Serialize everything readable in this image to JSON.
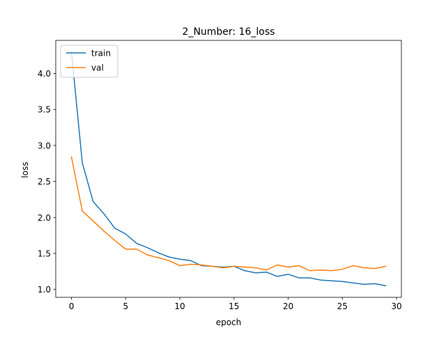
{
  "chart_data": {
    "type": "line",
    "title": "2_Number: 16_loss",
    "xlabel": "epoch",
    "ylabel": "loss",
    "xlim": [
      -1.45,
      30.45
    ],
    "ylim": [
      0.89,
      4.46
    ],
    "xticks": [
      0,
      5,
      10,
      15,
      20,
      25,
      30
    ],
    "yticks": [
      1.0,
      1.5,
      2.0,
      2.5,
      3.0,
      3.5,
      4.0
    ],
    "grid": false,
    "legend_position": "top-left",
    "x": [
      0,
      1,
      2,
      3,
      4,
      5,
      6,
      7,
      8,
      9,
      10,
      11,
      12,
      13,
      14,
      15,
      16,
      17,
      18,
      19,
      20,
      21,
      22,
      23,
      24,
      25,
      26,
      27,
      28,
      29
    ],
    "series": [
      {
        "name": "train",
        "color": "#1f77b4",
        "values": [
          4.3,
          2.76,
          2.22,
          2.05,
          1.85,
          1.77,
          1.64,
          1.58,
          1.51,
          1.45,
          1.42,
          1.4,
          1.33,
          1.32,
          1.31,
          1.32,
          1.26,
          1.23,
          1.24,
          1.18,
          1.21,
          1.16,
          1.16,
          1.13,
          1.12,
          1.11,
          1.09,
          1.07,
          1.08,
          1.05
        ]
      },
      {
        "name": "val",
        "color": "#ff7f0e",
        "values": [
          2.84,
          2.09,
          1.95,
          1.81,
          1.68,
          1.56,
          1.56,
          1.48,
          1.44,
          1.4,
          1.33,
          1.35,
          1.34,
          1.32,
          1.3,
          1.32,
          1.31,
          1.3,
          1.27,
          1.34,
          1.31,
          1.33,
          1.26,
          1.27,
          1.26,
          1.28,
          1.33,
          1.3,
          1.29,
          1.32
        ]
      }
    ]
  }
}
